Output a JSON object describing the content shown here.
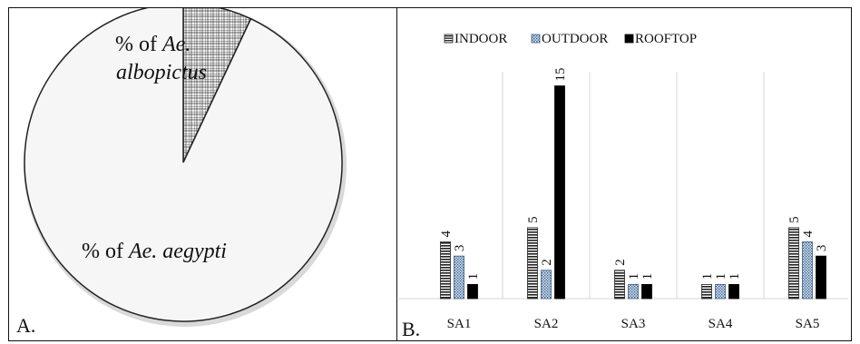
{
  "panels": {
    "a_label": "A.",
    "b_label": "B."
  },
  "chart_data": [
    {
      "type": "pie",
      "slices": [
        {
          "prefix": "% of ",
          "species": "Ae. albopictus",
          "value": 7,
          "pattern": "checkered"
        },
        {
          "prefix": "% of ",
          "species": "Ae. aegypti",
          "value": 93,
          "pattern": "plain"
        }
      ]
    },
    {
      "type": "bar",
      "categories": [
        "SA1",
        "SA2",
        "SA3",
        "SA4",
        "SA5"
      ],
      "series": [
        {
          "name": "INDOOR",
          "values": [
            4,
            5,
            2,
            1,
            5
          ],
          "pattern": "horizontal-stripes"
        },
        {
          "name": "OUTDOOR",
          "values": [
            3,
            2,
            1,
            1,
            4
          ],
          "pattern": "dotted"
        },
        {
          "name": "ROOFTOP",
          "values": [
            1,
            15,
            1,
            1,
            3
          ],
          "pattern": "solid-black"
        }
      ],
      "ylim": [
        0,
        16
      ],
      "legend_position": "top",
      "grid": false,
      "data_labels_rotated": true
    }
  ]
}
